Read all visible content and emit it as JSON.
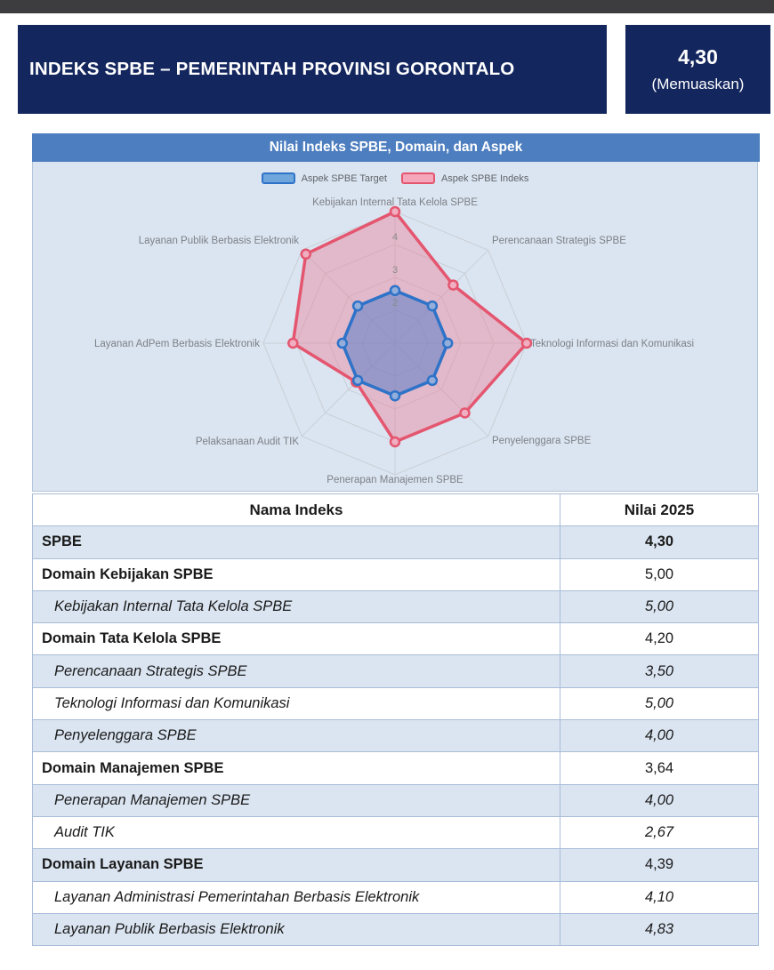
{
  "header": {
    "title": "INDEKS SPBE – PEMERINTAH PROVINSI GORONTALO",
    "score_value": "4,30",
    "score_predicate": "(Memuaskan)"
  },
  "colors": {
    "topbar": "#3d3d3f",
    "navy": "#13265e",
    "panel_header": "#4d7ebf",
    "panel_body": "#dbe5f1",
    "table_row_alt": "#dbe5f1",
    "grid": "#c9ced6",
    "tick_label": "#8a8a8a",
    "axis_label": "#7d8086"
  },
  "chart_data": {
    "type": "radar",
    "title": "Nilai Indeks SPBE, Domain, dan Aspek",
    "categories": [
      "Kebijakan Internal Tata Kelola SPBE",
      "Perencanaan Strategis SPBE",
      "Teknologi Informasi dan Komunikasi",
      "Penyelenggara SPBE",
      "Penerapan Manajemen SPBE",
      "Pelaksanaan Audit TIK",
      "Layanan AdPem Berbasis Elektronik",
      "Layanan Publik Berbasis Elektronik"
    ],
    "series": [
      {
        "name": "Aspek SPBE Target",
        "values": [
          2.6,
          2.6,
          2.6,
          2.6,
          2.6,
          2.6,
          2.6,
          2.6
        ],
        "stroke": "#2e73c8",
        "fill": "rgba(78,121,199,0.50)",
        "marker_fill": "#93aedb",
        "legend_fill": "#6fa7dc"
      },
      {
        "name": "Aspek SPBE Indeks",
        "values": [
          5.0,
          3.5,
          5.0,
          4.0,
          4.0,
          2.67,
          4.1,
          4.83
        ],
        "stroke": "#e4566f",
        "fill": "rgba(235,130,156,0.45)",
        "marker_fill": "#f0aec0",
        "legend_fill": "#f4a7ba"
      }
    ],
    "scale": {
      "min": 1,
      "max": 5,
      "ticks": [
        2,
        3,
        4
      ]
    },
    "legend_position": "top",
    "grid": true
  },
  "table": {
    "headers": [
      "Nama Indeks",
      "Nilai 2025"
    ],
    "rows": [
      {
        "name": "SPBE",
        "value": "4,30",
        "kind": "total"
      },
      {
        "name": "Domain Kebijakan SPBE",
        "value": "5,00",
        "kind": "domain"
      },
      {
        "name": "Kebijakan Internal Tata Kelola SPBE",
        "value": "5,00",
        "kind": "aspect"
      },
      {
        "name": "Domain Tata Kelola SPBE",
        "value": "4,20",
        "kind": "domain"
      },
      {
        "name": "Perencanaan Strategis SPBE",
        "value": "3,50",
        "kind": "aspect"
      },
      {
        "name": "Teknologi Informasi dan Komunikasi",
        "value": "5,00",
        "kind": "aspect"
      },
      {
        "name": "Penyelenggara SPBE",
        "value": "4,00",
        "kind": "aspect"
      },
      {
        "name": "Domain Manajemen SPBE",
        "value": "3,64",
        "kind": "domain"
      },
      {
        "name": "Penerapan Manajemen SPBE",
        "value": "4,00",
        "kind": "aspect"
      },
      {
        "name": "Audit TIK",
        "value": "2,67",
        "kind": "aspect"
      },
      {
        "name": "Domain Layanan SPBE",
        "value": "4,39",
        "kind": "domain"
      },
      {
        "name": "Layanan Administrasi Pemerintahan Berbasis Elektronik",
        "value": "4,10",
        "kind": "aspect"
      },
      {
        "name": "Layanan Publik Berbasis Elektronik",
        "value": "4,83",
        "kind": "aspect"
      }
    ]
  }
}
